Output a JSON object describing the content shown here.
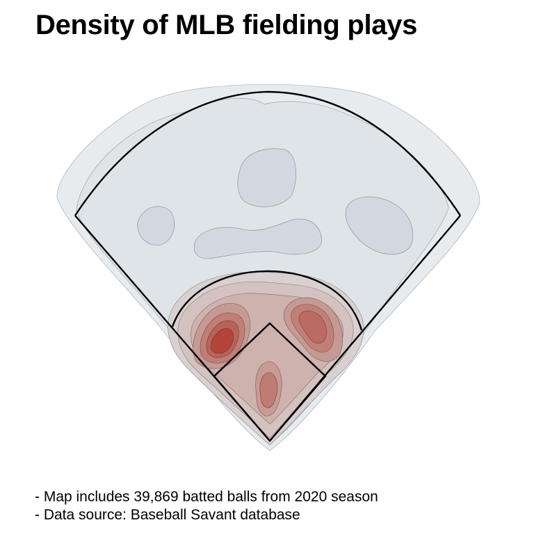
{
  "chart_data": {
    "type": "heatmap",
    "title": "Density of MLB fielding plays",
    "caption": [
      "- Map includes 39,869 batted balls from 2020 season",
      "- Data source: Baseball Savant database"
    ],
    "colors": {
      "low": "#e8ecef",
      "mid": "#cfd6dd",
      "high": "#b5453a",
      "field_lines": "#000000"
    },
    "hotspots": [
      {
        "name": "shortstop",
        "intensity": 1.0
      },
      {
        "name": "second-base-side",
        "intensity": 0.85
      },
      {
        "name": "pitcher-catcher-area",
        "intensity": 0.7
      },
      {
        "name": "left-center-outfield",
        "intensity": 0.3
      },
      {
        "name": "center-field",
        "intensity": 0.3
      },
      {
        "name": "right-center-outfield",
        "intensity": 0.3
      },
      {
        "name": "left-field",
        "intensity": 0.25
      }
    ]
  }
}
